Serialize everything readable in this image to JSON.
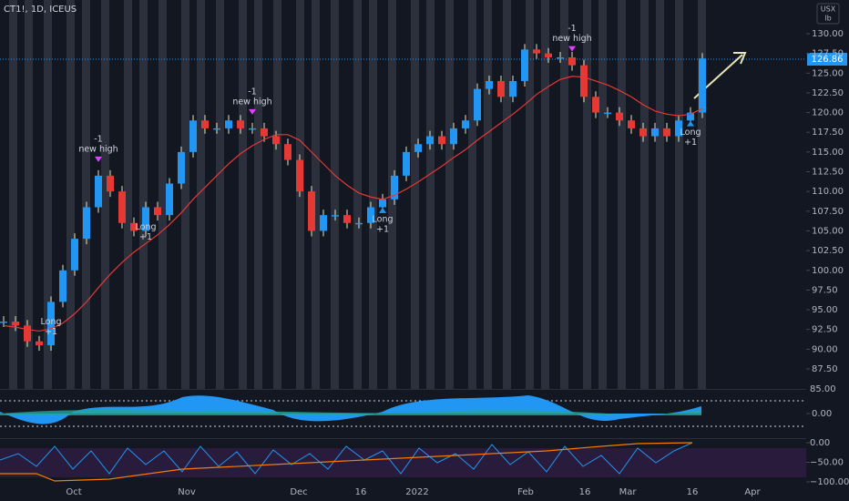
{
  "chart_data": {
    "type": "candlestick",
    "title": "CT1!, 1D, ICEUS",
    "unit": [
      "USX",
      "lb"
    ],
    "last_price_label": "126.86",
    "closes": [
      93.5,
      93,
      91,
      90.5,
      96,
      100,
      104,
      108,
      112,
      110,
      106,
      105,
      108,
      107,
      111,
      115,
      119,
      118,
      118,
      119,
      118,
      118,
      117,
      116,
      114,
      110,
      105,
      107,
      107,
      106,
      106,
      108,
      109,
      112,
      115,
      116,
      117,
      116,
      118,
      119,
      123,
      124,
      122,
      124,
      128,
      127.5,
      127,
      127,
      126,
      122,
      120,
      120,
      119,
      118,
      117,
      118,
      117,
      119,
      120,
      126.86
    ],
    "up_color": "#2196f3",
    "down_color": "#e53935",
    "moving_average": {
      "color": "#e53935",
      "values": [
        93,
        92.8,
        92.5,
        92.3,
        92.6,
        93.3,
        94.5,
        96,
        97.8,
        99.5,
        101,
        102.3,
        103.4,
        104.5,
        105.8,
        107.3,
        109,
        110.5,
        112,
        113.5,
        114.8,
        115.8,
        116.6,
        117.2,
        117.2,
        116.5,
        115,
        113.5,
        112,
        110.8,
        109.8,
        109.3,
        109,
        109.5,
        110.3,
        111.2,
        112.2,
        113.2,
        114.3,
        115.3,
        116.5,
        117.6,
        118.7,
        119.8,
        121,
        122.3,
        123.3,
        124.2,
        124.6,
        124.5,
        124,
        123.5,
        122.8,
        122,
        121,
        120.2,
        119.8,
        119.6,
        119.8,
        120.5
      ]
    },
    "ylim": [
      85,
      131
    ],
    "yticks": [
      {
        "value": 87.5,
        "label": "87.50"
      },
      {
        "value": 90,
        "label": "90.00"
      },
      {
        "value": 92.5,
        "label": "92.50"
      },
      {
        "value": 95,
        "label": "95.00"
      },
      {
        "value": 97.5,
        "label": "97.50"
      },
      {
        "value": 100,
        "label": "100.00"
      },
      {
        "value": 102.5,
        "label": "102.50"
      },
      {
        "value": 105,
        "label": "105.00"
      },
      {
        "value": 107.5,
        "label": "107.50"
      },
      {
        "value": 110,
        "label": "110.00"
      },
      {
        "value": 112.5,
        "label": "112.50"
      },
      {
        "value": 115,
        "label": "115.00"
      },
      {
        "value": 117.5,
        "label": "117.50"
      },
      {
        "value": 120,
        "label": "120.00"
      },
      {
        "value": 122.5,
        "label": "122.50"
      },
      {
        "value": 125,
        "label": "125.00"
      },
      {
        "value": 127.5,
        "label": "127.50"
      },
      {
        "value": 130,
        "label": "130.00"
      }
    ],
    "x_labels": [
      "Oct",
      "Nov",
      "Dec",
      "16",
      "2022",
      "Feb",
      "16",
      "Mar",
      "16",
      "Apr"
    ],
    "annotations": [
      {
        "text": [
          "-1",
          "new high"
        ],
        "at": 8
      },
      {
        "text": [
          "-1",
          "new high"
        ],
        "at": 21
      },
      {
        "text": [
          "-1",
          "new high"
        ],
        "at": 48
      },
      {
        "text": [
          "Long",
          "+1"
        ],
        "at": 4
      },
      {
        "text": [
          "Long",
          "+1"
        ],
        "at": 12
      },
      {
        "text": [
          "Long",
          "+1"
        ],
        "at": 32
      },
      {
        "text": [
          "Long",
          "+1"
        ],
        "at": 58
      }
    ],
    "osc_ticks": [
      {
        "value": 0,
        "label": "0.00"
      }
    ],
    "osc_top_label": "85.00",
    "rsi_ticks": [
      {
        "value": 0,
        "label": "0.00"
      },
      {
        "value": -50,
        "label": "−50.00"
      },
      {
        "value": -100,
        "label": "−100.00"
      }
    ]
  }
}
